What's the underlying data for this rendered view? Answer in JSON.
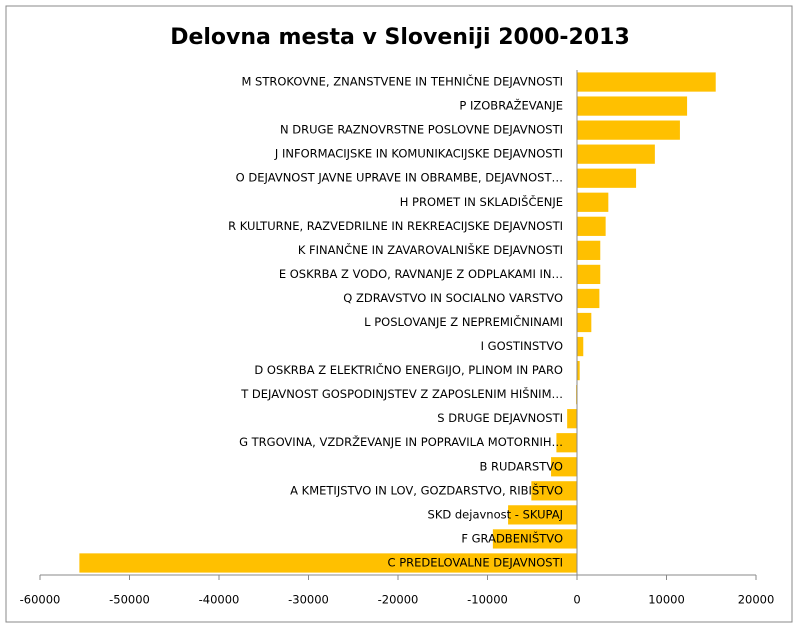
{
  "chart_data": {
    "type": "hbar",
    "title": "Delovna mesta v Sloveniji 2000-2013",
    "categories": [
      "M STROKOVNE, ZNANSTVENE IN TEHNIČNE DEJAVNOSTI",
      "P IZOBRAŽEVANJE",
      "N DRUGE RAZNOVRSTNE POSLOVNE DEJAVNOSTI",
      "J INFORMACIJSKE IN KOMUNIKACIJSKE DEJAVNOSTI",
      "O DEJAVNOST JAVNE UPRAVE IN OBRAMBE, DEJAVNOST…",
      "H PROMET IN SKLADIŠČENJE",
      "R KULTURNE, RAZVEDRILNE IN REKREACIJSKE DEJAVNOSTI",
      "K FINANČNE IN ZAVAROVALNIŠKE DEJAVNOSTI",
      "E OSKRBA Z VODO, RAVNANJE Z ODPLAKAMI IN…",
      "Q ZDRAVSTVO IN SOCIALNO VARSTVO",
      "L POSLOVANJE Z NEPREMIČNINAMI",
      "I GOSTINSTVO",
      "D OSKRBA Z ELEKTRIČNO ENERGIJO, PLINOM IN PARO",
      "T DEJAVNOST GOSPODINJSTEV Z ZAPOSLENIM HIŠNIM…",
      "S DRUGE DEJAVNOSTI",
      "G TRGOVINA, VZDRŽEVANJE IN POPRAVILA MOTORNIH…",
      "B RUDARSTVO",
      "A KMETIJSTVO IN LOV, GOZDARSTVO, RIBIŠTVO",
      "SKD dejavnost - SKUPAJ",
      "F GRADBENIŠTVO",
      "C PREDELOVALNE DEJAVNOSTI"
    ],
    "values": [
      15500,
      12300,
      11500,
      8700,
      6600,
      3500,
      3200,
      2600,
      2600,
      2500,
      1600,
      700,
      300,
      -100,
      -1100,
      -2300,
      -2900,
      -5100,
      -7700,
      -9400,
      -55600
    ],
    "color": "#ffc000",
    "xlim": [
      -60000,
      20000
    ],
    "xticks": [
      -60000,
      -50000,
      -40000,
      -30000,
      -20000,
      -10000,
      0,
      10000,
      20000
    ]
  }
}
